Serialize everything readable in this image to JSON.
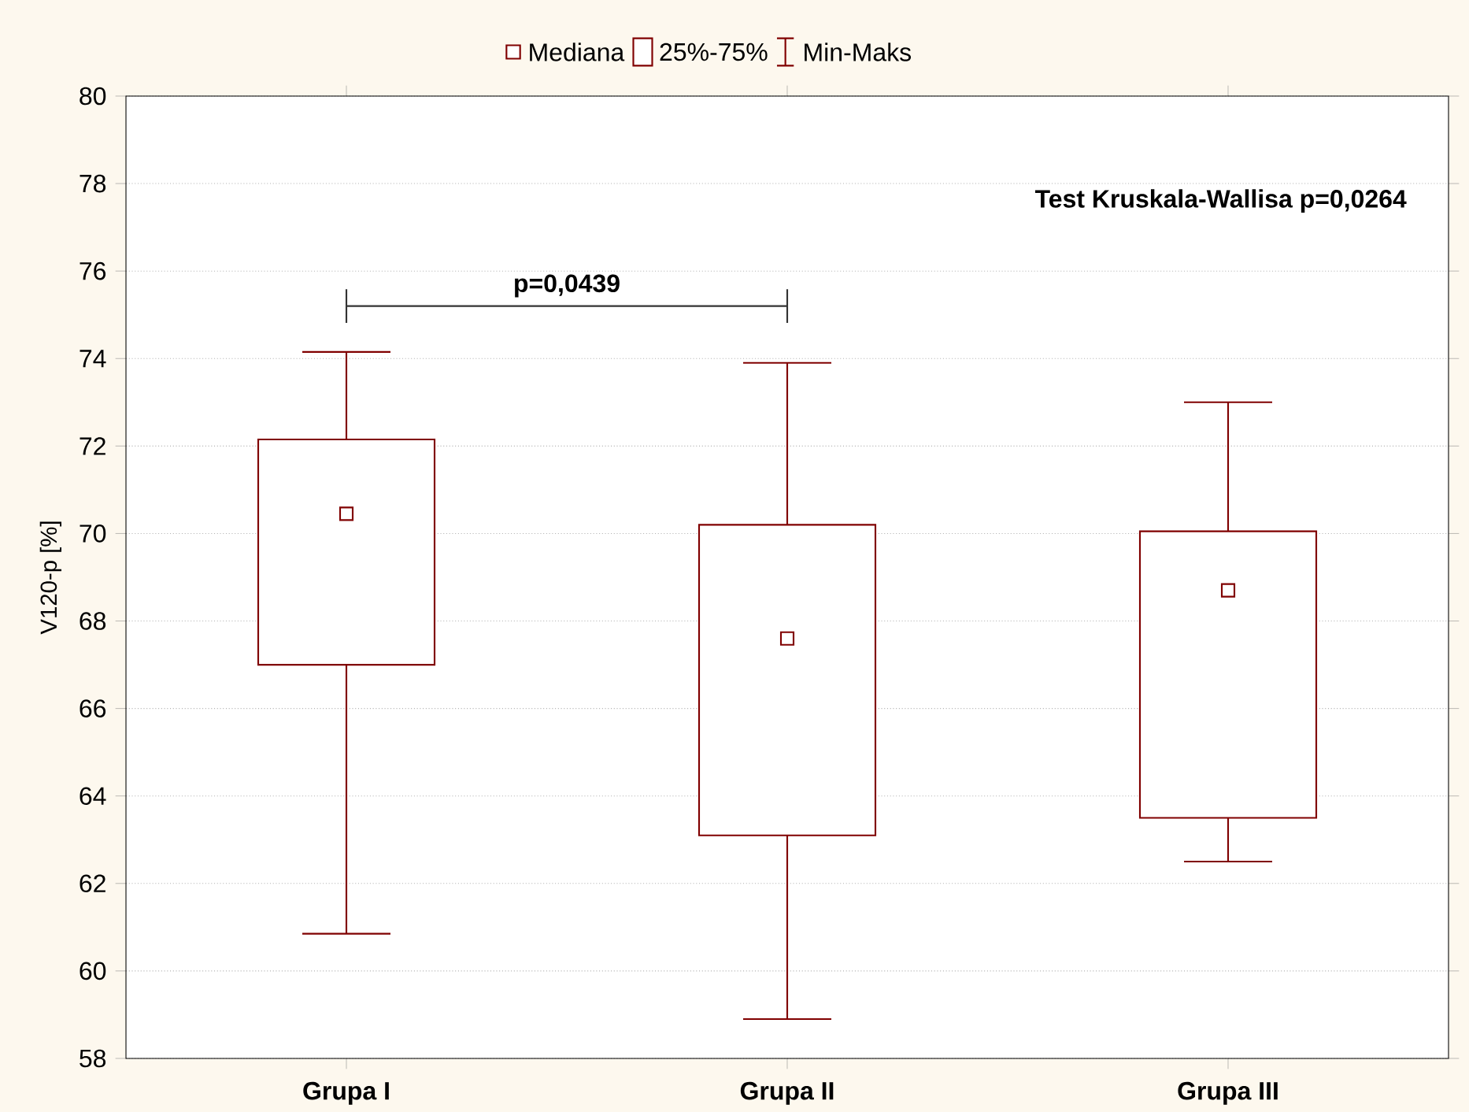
{
  "chart_data": {
    "type": "box",
    "ylabel": "V120-p [%]",
    "categories": [
      "Grupa I",
      "Grupa II",
      "Grupa III"
    ],
    "series": [
      {
        "color": "#800000",
        "boxes": [
          {
            "low": 60.85,
            "q1": 67.0,
            "median": 70.45,
            "q3": 72.15,
            "high": 74.15
          },
          {
            "low": 58.9,
            "q1": 63.1,
            "median": 67.6,
            "q3": 70.2,
            "high": 73.9
          },
          {
            "low": 62.5,
            "q1": 63.5,
            "median": 68.7,
            "q3": 70.05,
            "high": 73.0
          }
        ]
      }
    ],
    "ylim": [
      58,
      80
    ],
    "yticks": [
      58,
      60,
      62,
      64,
      66,
      68,
      70,
      72,
      74,
      76,
      78,
      80
    ],
    "grid": "y",
    "marker": "square",
    "annotations": [
      "Mediana",
      "25%-75%",
      "Min-Maks",
      "Test Kruskala-Wallisa  p=0,0264",
      "p=0,0439"
    ]
  }
}
